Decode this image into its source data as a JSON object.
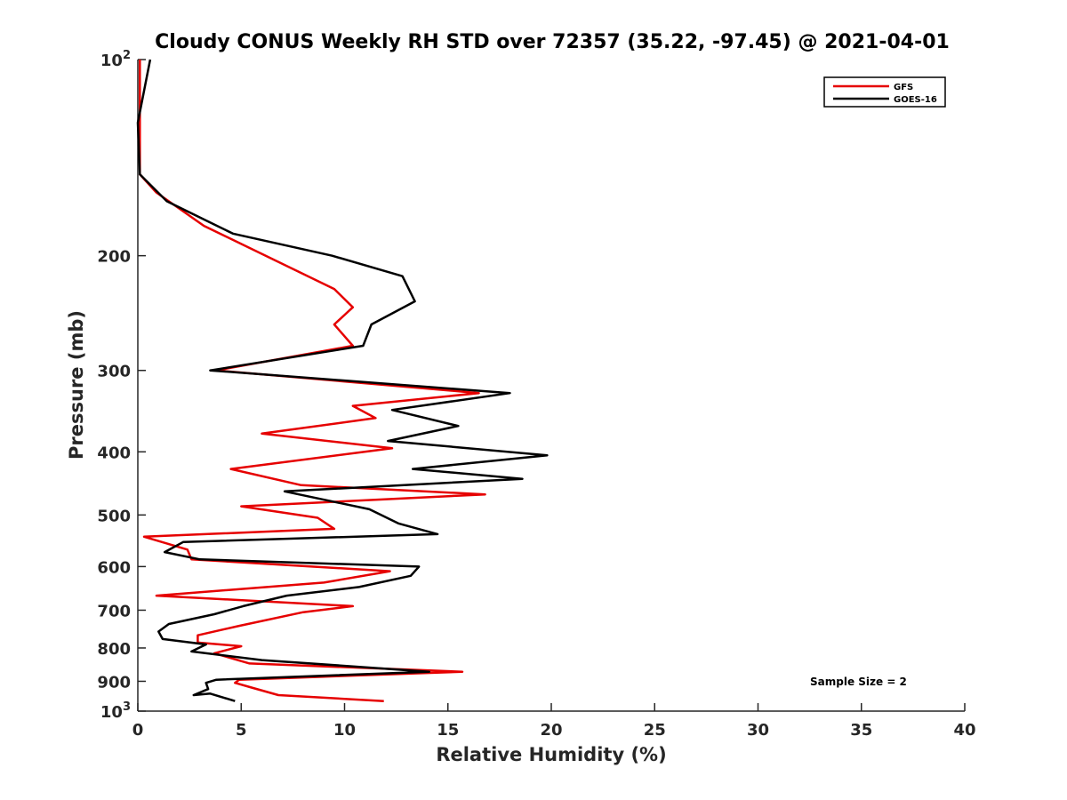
{
  "chart_data": {
    "type": "line",
    "title": "Cloudy CONUS Weekly RH STD over 72357 (35.22, -97.45) @ 2021-04-01",
    "xlabel": "Relative Humidity (%)",
    "ylabel": "Pressure (mb)",
    "xlim": [
      0,
      40
    ],
    "ylim": [
      100,
      1000
    ],
    "y_scale": "log",
    "y_reversed": true,
    "grid": false,
    "legend_position": "top-right",
    "x_ticks": [
      "0",
      "5",
      "10",
      "15",
      "20",
      "25",
      "30",
      "35",
      "40"
    ],
    "y_ticks": [
      {
        "value": 100,
        "base": "10",
        "exp": "2"
      },
      {
        "value": 200,
        "label": "200"
      },
      {
        "value": 300,
        "label": "300"
      },
      {
        "value": 400,
        "label": "400"
      },
      {
        "value": 500,
        "label": "500"
      },
      {
        "value": 600,
        "label": "600"
      },
      {
        "value": 700,
        "label": "700"
      },
      {
        "value": 800,
        "label": "800"
      },
      {
        "value": 900,
        "label": "900"
      },
      {
        "value": 1000,
        "base": "10",
        "exp": "3"
      }
    ],
    "annotation": "Sample Size = 2",
    "series": [
      {
        "name": "GFS",
        "color": "#e60000",
        "points": [
          [
            0.1,
            100
          ],
          [
            0.1,
            125
          ],
          [
            0.1,
            150
          ],
          [
            0.9,
            160
          ],
          [
            3.2,
            180
          ],
          [
            9.5,
            225
          ],
          [
            10.4,
            240
          ],
          [
            9.5,
            255
          ],
          [
            10.4,
            275
          ],
          [
            3.8,
            300
          ],
          [
            16.5,
            325
          ],
          [
            10.4,
            340
          ],
          [
            11.5,
            355
          ],
          [
            6.0,
            375
          ],
          [
            12.3,
            395
          ],
          [
            4.5,
            425
          ],
          [
            7.9,
            450
          ],
          [
            16.8,
            465
          ],
          [
            5.0,
            485
          ],
          [
            8.7,
            505
          ],
          [
            9.5,
            525
          ],
          [
            0.3,
            540
          ],
          [
            2.4,
            565
          ],
          [
            2.6,
            585
          ],
          [
            12.2,
            610
          ],
          [
            9.0,
            635
          ],
          [
            0.9,
            665
          ],
          [
            10.4,
            690
          ],
          [
            8.0,
            705
          ],
          [
            4.9,
            740
          ],
          [
            2.9,
            765
          ],
          [
            2.9,
            785
          ],
          [
            5.0,
            795
          ],
          [
            3.7,
            815
          ],
          [
            5.4,
            845
          ],
          [
            15.7,
            870
          ],
          [
            4.9,
            895
          ],
          [
            4.7,
            905
          ],
          [
            5.5,
            920
          ],
          [
            6.8,
            945
          ],
          [
            11.9,
            965
          ]
        ]
      },
      {
        "name": "GOES-16",
        "color": "#000000",
        "points": [
          [
            0.6,
            100
          ],
          [
            0.0,
            125
          ],
          [
            0.1,
            150
          ],
          [
            1.4,
            165
          ],
          [
            4.6,
            185
          ],
          [
            9.4,
            200
          ],
          [
            12.8,
            215
          ],
          [
            13.4,
            235
          ],
          [
            11.3,
            255
          ],
          [
            10.9,
            275
          ],
          [
            3.5,
            300
          ],
          [
            18.0,
            325
          ],
          [
            12.3,
            345
          ],
          [
            15.5,
            365
          ],
          [
            12.1,
            385
          ],
          [
            19.8,
            405
          ],
          [
            13.3,
            425
          ],
          [
            18.6,
            440
          ],
          [
            7.1,
            460
          ],
          [
            11.2,
            490
          ],
          [
            12.6,
            515
          ],
          [
            14.5,
            535
          ],
          [
            2.2,
            550
          ],
          [
            1.3,
            570
          ],
          [
            3.0,
            585
          ],
          [
            13.6,
            600
          ],
          [
            13.2,
            620
          ],
          [
            10.7,
            645
          ],
          [
            7.2,
            665
          ],
          [
            5.1,
            690
          ],
          [
            3.7,
            710
          ],
          [
            1.5,
            735
          ],
          [
            1.0,
            755
          ],
          [
            1.2,
            775
          ],
          [
            3.3,
            790
          ],
          [
            2.6,
            810
          ],
          [
            6.0,
            835
          ],
          [
            14.1,
            870
          ],
          [
            3.8,
            895
          ],
          [
            3.3,
            905
          ],
          [
            3.4,
            925
          ],
          [
            2.7,
            945
          ],
          [
            3.5,
            940
          ],
          [
            4.7,
            965
          ]
        ]
      }
    ]
  }
}
